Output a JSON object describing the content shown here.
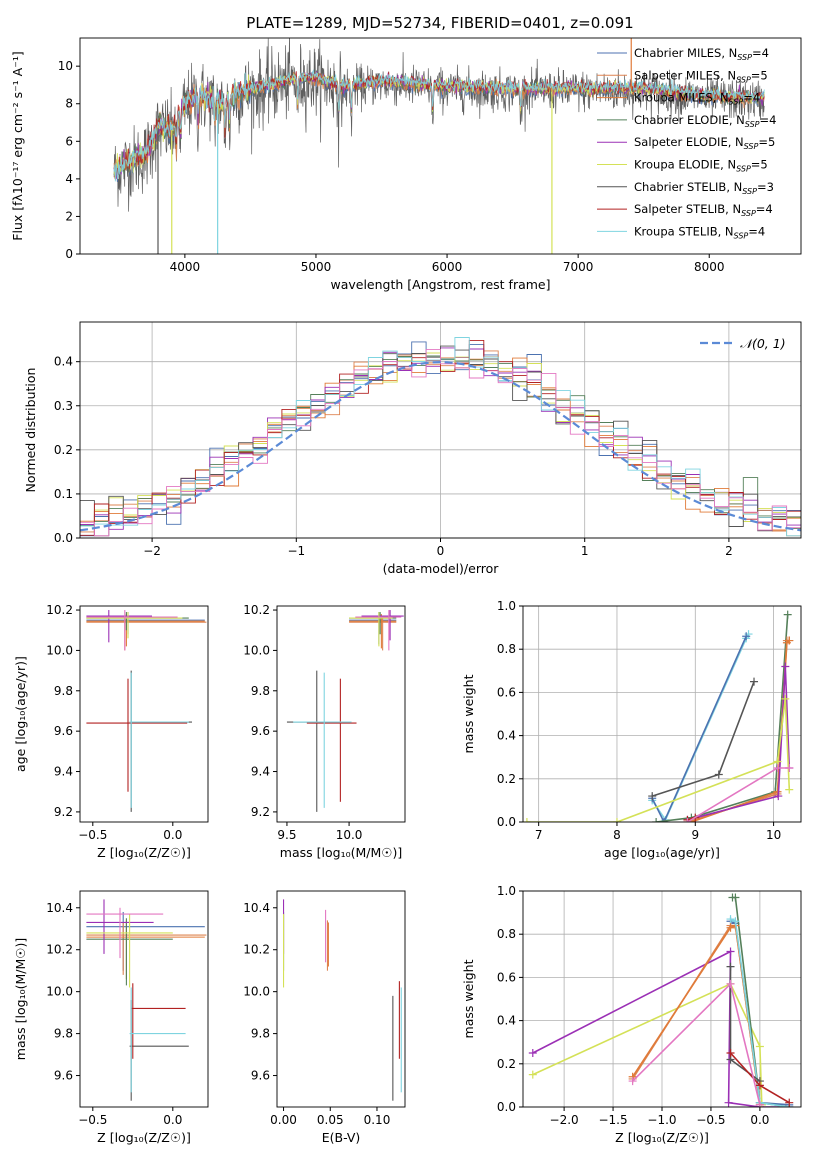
{
  "title": "PLATE=1289, MJD=52734, FIBERID=0401, z=0.091",
  "colors": {
    "chabrier_miles": "#4c72b0",
    "salpeter_miles": "#dd8452",
    "kroupa_miles": "#e07b39",
    "chabrier_elodie": "#55805a",
    "salpeter_elodie": "#9b30b5",
    "kroupa_elodie": "#d4e157",
    "chabrier_stelib": "#555555",
    "salpeter_stelib": "#b22222",
    "kroupa_stelib": "#7fd4e0",
    "pink": "#e377c2",
    "normal": "#5b8ad6",
    "grid": "#b0b0b0"
  },
  "legend": [
    {
      "key": "chabrier_miles",
      "label": "Chabrier MILES, N",
      "sub": "SSP",
      "suffix": "=4"
    },
    {
      "key": "salpeter_miles",
      "label": "Salpeter MILES, N",
      "sub": "SSP",
      "suffix": "=5"
    },
    {
      "key": "kroupa_miles",
      "label": "Kroupa MILES, N",
      "sub": "SSP",
      "suffix": "=4"
    },
    {
      "key": "chabrier_elodie",
      "label": "Chabrier ELODIE, N",
      "sub": "SSP",
      "suffix": "=4"
    },
    {
      "key": "salpeter_elodie",
      "label": "Salpeter ELODIE, N",
      "sub": "SSP",
      "suffix": "=5"
    },
    {
      "key": "kroupa_elodie",
      "label": "Kroupa ELODIE, N",
      "sub": "SSP",
      "suffix": "=5"
    },
    {
      "key": "chabrier_stelib",
      "label": "Chabrier STELIB, N",
      "sub": "SSP",
      "suffix": "=3"
    },
    {
      "key": "salpeter_stelib",
      "label": "Salpeter STELIB, N",
      "sub": "SSP",
      "suffix": "=4"
    },
    {
      "key": "kroupa_stelib",
      "label": "Kroupa STELIB, N",
      "sub": "SSP",
      "suffix": "=4"
    }
  ],
  "chart_data": [
    {
      "id": "spectrum",
      "type": "line",
      "xlabel": "wavelength [Angstrom, rest frame]",
      "ylabel": "Flux [fλ10⁻¹⁷ erg cm⁻² s⁻¹ A⁻¹]",
      "xlim": [
        3200,
        8700
      ],
      "ylim": [
        0,
        11.5
      ],
      "xticks": [
        4000,
        5000,
        6000,
        7000,
        8000
      ],
      "yticks": [
        0,
        2,
        4,
        6,
        8,
        10
      ],
      "grid": false,
      "legend_position": "right",
      "continuum": {
        "x": [
          3460,
          3600,
          3700,
          3800,
          3900,
          4000,
          4100,
          4200,
          4300,
          4400,
          4600,
          4800,
          5000,
          5200,
          5500,
          6000,
          6500,
          7000,
          7500,
          8000,
          8400
        ],
        "y": [
          4.5,
          5.0,
          5.3,
          6.8,
          6.6,
          7.9,
          8.5,
          8.3,
          8.0,
          8.6,
          8.9,
          9.3,
          9.4,
          8.9,
          9.2,
          8.9,
          8.8,
          8.8,
          8.8,
          8.4,
          8.3
        ]
      },
      "absorption_lines": [
        3934,
        3968,
        4102,
        4227,
        4305,
        4340,
        4861,
        5175,
        5270,
        5890,
        6563
      ],
      "spikes": [
        3795,
        3900,
        4250,
        6800,
        7405
      ]
    },
    {
      "id": "residuals",
      "type": "histogram",
      "xlabel": "(data-model)/error",
      "ylabel": "Normed distribution",
      "xlim": [
        -2.5,
        2.5
      ],
      "ylim": [
        0,
        0.49
      ],
      "xticks": [
        -2,
        -1,
        0,
        1,
        2
      ],
      "yticks": [
        0.0,
        0.1,
        0.2,
        0.3,
        0.4
      ],
      "grid": true,
      "bin_width": 0.1,
      "reference": {
        "label": "𝒩(0, 1)",
        "mean": 0,
        "sigma": 1
      }
    },
    {
      "id": "age_vs_Z",
      "type": "errorbar",
      "xlabel": "Z [log₁₀(Z/Z☉)]",
      "ylabel": "age  [log₁₀(age/yr)]",
      "xlim": [
        -0.58,
        0.22
      ],
      "ylim": [
        9.15,
        10.22
      ],
      "xticks": [
        -0.5,
        0.0
      ],
      "yticks": [
        9.2,
        9.4,
        9.6,
        9.8,
        10.0,
        10.2
      ],
      "points": [
        {
          "c": "chabrier_miles",
          "x": -0.28,
          "xl": -0.54,
          "xh": 0.2,
          "y": 10.15,
          "yl": 10.08,
          "yh": 10.19
        },
        {
          "c": "salpeter_miles",
          "x": -0.3,
          "xl": -0.54,
          "xh": 0.21,
          "y": 10.14,
          "yl": 10.0,
          "yh": 10.17
        },
        {
          "c": "kroupa_miles",
          "x": -0.29,
          "xl": -0.54,
          "xh": 0.2,
          "y": 10.145,
          "yl": 10.02,
          "yh": 10.18
        },
        {
          "c": "chabrier_elodie",
          "x": -0.29,
          "xl": -0.54,
          "xh": 0.1,
          "y": 10.16,
          "yl": 10.1,
          "yh": 10.19
        },
        {
          "c": "salpeter_elodie",
          "x": -0.4,
          "xl": -0.54,
          "xh": -0.13,
          "y": 10.17,
          "yl": 10.04,
          "yh": 10.2
        },
        {
          "c": "kroupa_elodie",
          "x": -0.28,
          "xl": -0.54,
          "xh": 0.06,
          "y": 10.16,
          "yl": 10.06,
          "yh": 10.19
        },
        {
          "c": "chabrier_stelib",
          "x": -0.26,
          "xl": -0.27,
          "xh": 0.12,
          "y": 9.645,
          "yl": 9.2,
          "yh": 9.9
        },
        {
          "c": "salpeter_stelib",
          "x": -0.28,
          "xl": -0.54,
          "xh": 0.09,
          "y": 9.64,
          "yl": 9.3,
          "yh": 9.86
        },
        {
          "c": "kroupa_stelib",
          "x": -0.26,
          "xl": -0.27,
          "xh": 0.1,
          "y": 9.645,
          "yl": 9.22,
          "yh": 9.89
        },
        {
          "c": "pink",
          "x": -0.3,
          "xl": -0.54,
          "xh": 0.03,
          "y": 10.165,
          "yl": 10.0,
          "yh": 10.2
        }
      ]
    },
    {
      "id": "age_vs_mass",
      "type": "errorbar",
      "xlabel": "mass [log₁₀(M/M☉)]",
      "ylabel": "",
      "xlim": [
        9.42,
        10.45
      ],
      "ylim": [
        9.15,
        10.22
      ],
      "xticks": [
        9.5,
        10.0
      ],
      "yticks": [
        9.2,
        9.4,
        9.6,
        9.8,
        10.0,
        10.2
      ],
      "points": [
        {
          "c": "chabrier_miles",
          "x": 10.24,
          "xl": 10.0,
          "xh": 10.38,
          "y": 10.15,
          "yl": 10.03,
          "yh": 10.19
        },
        {
          "c": "salpeter_miles",
          "x": 10.27,
          "xl": 10.0,
          "xh": 10.38,
          "y": 10.14,
          "yl": 10.0,
          "yh": 10.17
        },
        {
          "c": "kroupa_miles",
          "x": 10.26,
          "xl": 10.0,
          "xh": 10.38,
          "y": 10.145,
          "yl": 10.01,
          "yh": 10.18
        },
        {
          "c": "chabrier_elodie",
          "x": 10.25,
          "xl": 10.0,
          "xh": 10.38,
          "y": 10.16,
          "yl": 10.08,
          "yh": 10.19
        },
        {
          "c": "salpeter_elodie",
          "x": 10.33,
          "xl": 10.1,
          "xh": 10.44,
          "y": 10.17,
          "yl": 10.05,
          "yh": 10.2
        },
        {
          "c": "kroupa_elodie",
          "x": 10.24,
          "xl": 10.0,
          "xh": 10.35,
          "y": 10.16,
          "yl": 10.02,
          "yh": 10.19
        },
        {
          "c": "chabrier_stelib",
          "x": 9.74,
          "xl": 9.5,
          "xh": 9.98,
          "y": 9.645,
          "yl": 9.2,
          "yh": 9.9
        },
        {
          "c": "salpeter_stelib",
          "x": 9.93,
          "xl": 9.66,
          "xh": 10.06,
          "y": 9.64,
          "yl": 9.25,
          "yh": 9.86
        },
        {
          "c": "kroupa_stelib",
          "x": 9.8,
          "xl": 9.55,
          "xh": 10.02,
          "y": 9.645,
          "yl": 9.22,
          "yh": 9.89
        },
        {
          "c": "pink",
          "x": 10.32,
          "xl": 10.05,
          "xh": 10.42,
          "y": 10.165,
          "yl": 10.0,
          "yh": 10.2
        }
      ]
    },
    {
      "id": "weight_vs_age",
      "type": "line",
      "xlabel": "age  [log₁₀(age/yr)]",
      "ylabel": "mass weight",
      "xlim": [
        6.8,
        10.35
      ],
      "ylim": [
        0,
        1.0
      ],
      "xticks": [
        7,
        8,
        9,
        10
      ],
      "yticks": [
        0.0,
        0.2,
        0.4,
        0.6,
        0.8,
        1.0
      ],
      "grid": true,
      "series": [
        {
          "c": "kroupa_stelib",
          "x": [
            8.45,
            8.62,
            9.65,
            9.68
          ],
          "y": [
            0.1,
            0.01,
            0.85,
            0.87
          ]
        },
        {
          "c": "chabrier_miles",
          "x": [
            8.45,
            8.6,
            9.65
          ],
          "y": [
            0.11,
            0.0,
            0.86
          ]
        },
        {
          "c": "chabrier_elodie",
          "x": [
            8.5,
            8.95,
            10.02,
            10.18
          ],
          "y": [
            0.0,
            0.02,
            0.14,
            0.96
          ]
        },
        {
          "c": "salpeter_miles",
          "x": [
            8.9,
            10.05,
            10.17,
            10.2
          ],
          "y": [
            0.0,
            0.13,
            0.84,
            0.84
          ]
        },
        {
          "c": "kroupa_miles",
          "x": [
            8.95,
            10.05,
            10.17,
            10.2
          ],
          "y": [
            0.0,
            0.14,
            0.83,
            0.84
          ]
        },
        {
          "c": "salpeter_elodie",
          "x": [
            8.9,
            10.06,
            10.15,
            10.2
          ],
          "y": [
            0.01,
            0.12,
            0.72,
            0.25
          ]
        },
        {
          "c": "chabrier_stelib",
          "x": [
            8.45,
            9.3,
            9.75
          ],
          "y": [
            0.12,
            0.22,
            0.65
          ]
        },
        {
          "c": "salpeter_stelib",
          "x": [
            8.9,
            9.0
          ],
          "y": [
            0.01,
            0.02
          ]
        },
        {
          "c": "kroupa_elodie",
          "x": [
            6.85,
            8.0,
            10.05,
            10.15,
            10.2
          ],
          "y": [
            0.0,
            0.0,
            0.28,
            0.57,
            0.15
          ]
        },
        {
          "c": "pink",
          "x": [
            8.9,
            10.05,
            10.2
          ],
          "y": [
            0.0,
            0.25,
            0.25
          ]
        }
      ]
    },
    {
      "id": "mass_vs_Z",
      "type": "errorbar",
      "xlabel": "Z [log₁₀(Z/Z☉)]",
      "ylabel": "mass [log₁₀(M/M☉)]",
      "xlim": [
        -0.58,
        0.22
      ],
      "ylim": [
        9.45,
        10.48
      ],
      "xticks": [
        -0.5,
        0.0
      ],
      "yticks": [
        9.6,
        9.8,
        10.0,
        10.2,
        10.4
      ],
      "points": [
        {
          "c": "chabrier_miles",
          "x": -0.31,
          "xl": -0.54,
          "xh": 0.2,
          "y": 10.31,
          "yl": 10.1,
          "yh": 10.38
        },
        {
          "c": "salpeter_miles",
          "x": -0.31,
          "xl": -0.54,
          "xh": 0.21,
          "y": 10.27,
          "yl": 10.08,
          "yh": 10.33
        },
        {
          "c": "kroupa_miles",
          "x": -0.29,
          "xl": -0.54,
          "xh": 0.2,
          "y": 10.26,
          "yl": 10.06,
          "yh": 10.34
        },
        {
          "c": "chabrier_elodie",
          "x": -0.29,
          "xl": -0.54,
          "xh": 0.0,
          "y": 10.25,
          "yl": 10.03,
          "yh": 10.35
        },
        {
          "c": "salpeter_elodie",
          "x": -0.43,
          "xl": -0.54,
          "xh": -0.12,
          "y": 10.33,
          "yl": 10.18,
          "yh": 10.44
        },
        {
          "c": "kroupa_elodie",
          "x": -0.27,
          "xl": -0.54,
          "xh": 0.0,
          "y": 10.28,
          "yl": 10.02,
          "yh": 10.37
        },
        {
          "c": "chabrier_stelib",
          "x": -0.26,
          "xl": -0.27,
          "xh": 0.1,
          "y": 9.74,
          "yl": 9.48,
          "yh": 9.96
        },
        {
          "c": "salpeter_stelib",
          "x": -0.25,
          "xl": -0.26,
          "xh": 0.08,
          "y": 9.92,
          "yl": 9.68,
          "yh": 10.04
        },
        {
          "c": "kroupa_stelib",
          "x": -0.26,
          "xl": -0.27,
          "xh": 0.08,
          "y": 9.8,
          "yl": 9.52,
          "yh": 10.02
        },
        {
          "c": "pink",
          "x": -0.33,
          "xl": -0.54,
          "xh": -0.06,
          "y": 10.37,
          "yl": 10.16,
          "yh": 10.4
        }
      ]
    },
    {
      "id": "mass_vs_EBV",
      "type": "errorbar",
      "xlabel": "E(B-V)",
      "ylabel": "",
      "xlim": [
        -0.007,
        0.13
      ],
      "ylim": [
        9.45,
        10.48
      ],
      "xticks": [
        0.0,
        0.05,
        0.1
      ],
      "yticks": [
        9.6,
        9.8,
        10.0,
        10.2,
        10.4
      ],
      "points": [
        {
          "c": "chabrier_miles",
          "x": 0.0,
          "y": 10.31,
          "yl": 10.1,
          "yh": 10.38
        },
        {
          "c": "salpeter_elodie",
          "x": 0.0,
          "y": 10.33,
          "yl": 10.18,
          "yh": 10.44
        },
        {
          "c": "kroupa_elodie",
          "x": 0.0,
          "y": 10.28,
          "yl": 10.02,
          "yh": 10.37
        },
        {
          "c": "pink",
          "x": 0.045,
          "y": 10.3,
          "yl": 10.14,
          "yh": 10.39
        },
        {
          "c": "salpeter_miles",
          "x": 0.047,
          "y": 10.27,
          "yl": 10.1,
          "yh": 10.34
        },
        {
          "c": "kroupa_miles",
          "x": 0.048,
          "y": 10.25,
          "yl": 10.12,
          "yh": 10.33
        },
        {
          "c": "chabrier_stelib",
          "x": 0.117,
          "y": 9.74,
          "yl": 9.48,
          "yh": 9.98
        },
        {
          "c": "salpeter_stelib",
          "x": 0.124,
          "y": 9.92,
          "yl": 9.68,
          "yh": 10.05
        },
        {
          "c": "kroupa_stelib",
          "x": 0.126,
          "y": 9.8,
          "yl": 9.52,
          "yh": 10.02
        }
      ]
    },
    {
      "id": "weight_vs_Z",
      "type": "line",
      "xlabel": "Z [log₁₀(Z/Z☉)]",
      "ylabel": "mass weight",
      "xlim": [
        -2.42,
        0.42
      ],
      "ylim": [
        0,
        1.0
      ],
      "xticks": [
        -2.0,
        -1.5,
        -1.0,
        -0.5,
        0.0
      ],
      "yticks": [
        0.0,
        0.2,
        0.4,
        0.6,
        0.8,
        1.0
      ],
      "grid": true,
      "series": [
        {
          "c": "salpeter_elodie",
          "x": [
            -2.32,
            -0.3,
            -0.32,
            0.0,
            0.3
          ],
          "y": [
            0.25,
            0.72,
            0.02,
            0.0,
            0.0
          ]
        },
        {
          "c": "kroupa_elodie",
          "x": [
            -2.32,
            -0.3,
            0.0,
            0.02
          ],
          "y": [
            0.15,
            0.57,
            0.28,
            0.01
          ]
        },
        {
          "c": "chabrier_miles",
          "x": [
            -0.3,
            -0.25,
            0.0,
            0.3
          ],
          "y": [
            0.86,
            0.85,
            0.02,
            0.01
          ]
        },
        {
          "c": "chabrier_elodie",
          "x": [
            -0.28,
            -0.25,
            0.0,
            0.3
          ],
          "y": [
            0.97,
            0.97,
            0.02,
            0.0
          ]
        },
        {
          "c": "salpeter_miles",
          "x": [
            -1.3,
            -0.3,
            -0.25,
            0.0
          ],
          "y": [
            0.13,
            0.84,
            0.84,
            0.01
          ]
        },
        {
          "c": "kroupa_miles",
          "x": [
            -1.3,
            -0.3,
            -0.25,
            0.0
          ],
          "y": [
            0.14,
            0.83,
            0.84,
            0.01
          ]
        },
        {
          "c": "kroupa_stelib",
          "x": [
            -0.3,
            -0.25,
            0.0,
            0.3
          ],
          "y": [
            0.87,
            0.86,
            0.02,
            0.0
          ]
        },
        {
          "c": "chabrier_stelib",
          "x": [
            -0.3,
            -0.3,
            0.0
          ],
          "y": [
            0.65,
            0.22,
            0.12
          ]
        },
        {
          "c": "salpeter_stelib",
          "x": [
            -0.3,
            0.0,
            0.3
          ],
          "y": [
            0.25,
            0.1,
            0.02
          ]
        },
        {
          "c": "pink",
          "x": [
            -1.3,
            -0.3,
            0.0
          ],
          "y": [
            0.12,
            0.57,
            0.01
          ]
        }
      ]
    }
  ]
}
